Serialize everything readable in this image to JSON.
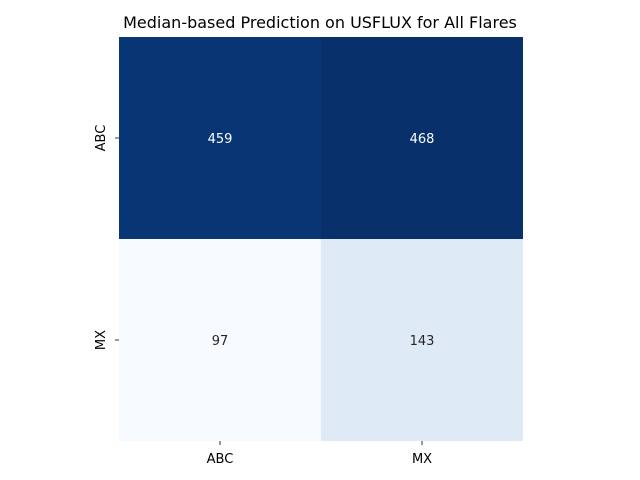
{
  "chart_data": {
    "type": "heatmap",
    "title": "Median-based Prediction on USFLUX for All Flares",
    "x_categories": [
      "ABC",
      "MX"
    ],
    "y_categories": [
      "ABC",
      "MX"
    ],
    "values": [
      [
        459,
        468
      ],
      [
        97,
        143
      ]
    ],
    "colormap": "Blues",
    "colorbar": false,
    "grid": false,
    "xlabel": "",
    "ylabel": ""
  }
}
